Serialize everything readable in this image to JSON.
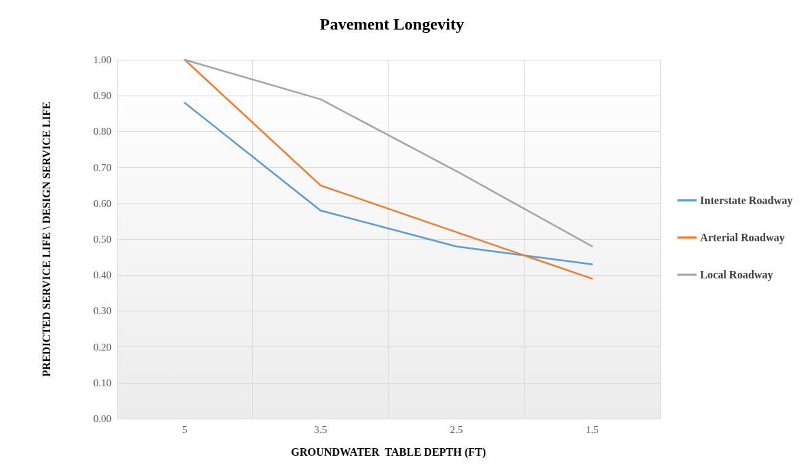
{
  "chart_data": {
    "type": "line",
    "title": "Pavement Longevity",
    "xlabel": "GROUNDWATER  TABLE DEPTH (FT)",
    "ylabel": "PREDICTED SERVICE LIFE \\ DESIGN SERVICE LIFE",
    "categories": [
      "5",
      "3.5",
      "2.5",
      "1.5"
    ],
    "series": [
      {
        "name": "Interstate Roadway",
        "color": "#5b9bd5",
        "values": [
          0.88,
          0.58,
          0.48,
          0.43
        ]
      },
      {
        "name": "Arterial Roadway",
        "color": "#ed7d31",
        "values": [
          1.0,
          0.65,
          0.52,
          0.39
        ]
      },
      {
        "name": "Local Roadway",
        "color": "#a5a5a5",
        "values": [
          1.0,
          0.89,
          0.69,
          0.48
        ]
      }
    ],
    "ylim": [
      0,
      1
    ],
    "yticks": [
      {
        "value": 0,
        "label": "0.00"
      },
      {
        "value": 0.1,
        "label": "0.10"
      },
      {
        "value": 0.2,
        "label": "0.20"
      },
      {
        "value": 0.3,
        "label": "0.30"
      },
      {
        "value": 0.4,
        "label": "0.40"
      },
      {
        "value": 0.5,
        "label": "0.50"
      },
      {
        "value": 0.6,
        "label": "0.60"
      },
      {
        "value": 0.7,
        "label": "0.70"
      },
      {
        "value": 0.8,
        "label": "0.80"
      },
      {
        "value": 0.9,
        "label": "0.90"
      },
      {
        "value": 1,
        "label": "1.00"
      }
    ],
    "grid": true,
    "legend": "right",
    "marker": "none",
    "line_style": "solid"
  }
}
